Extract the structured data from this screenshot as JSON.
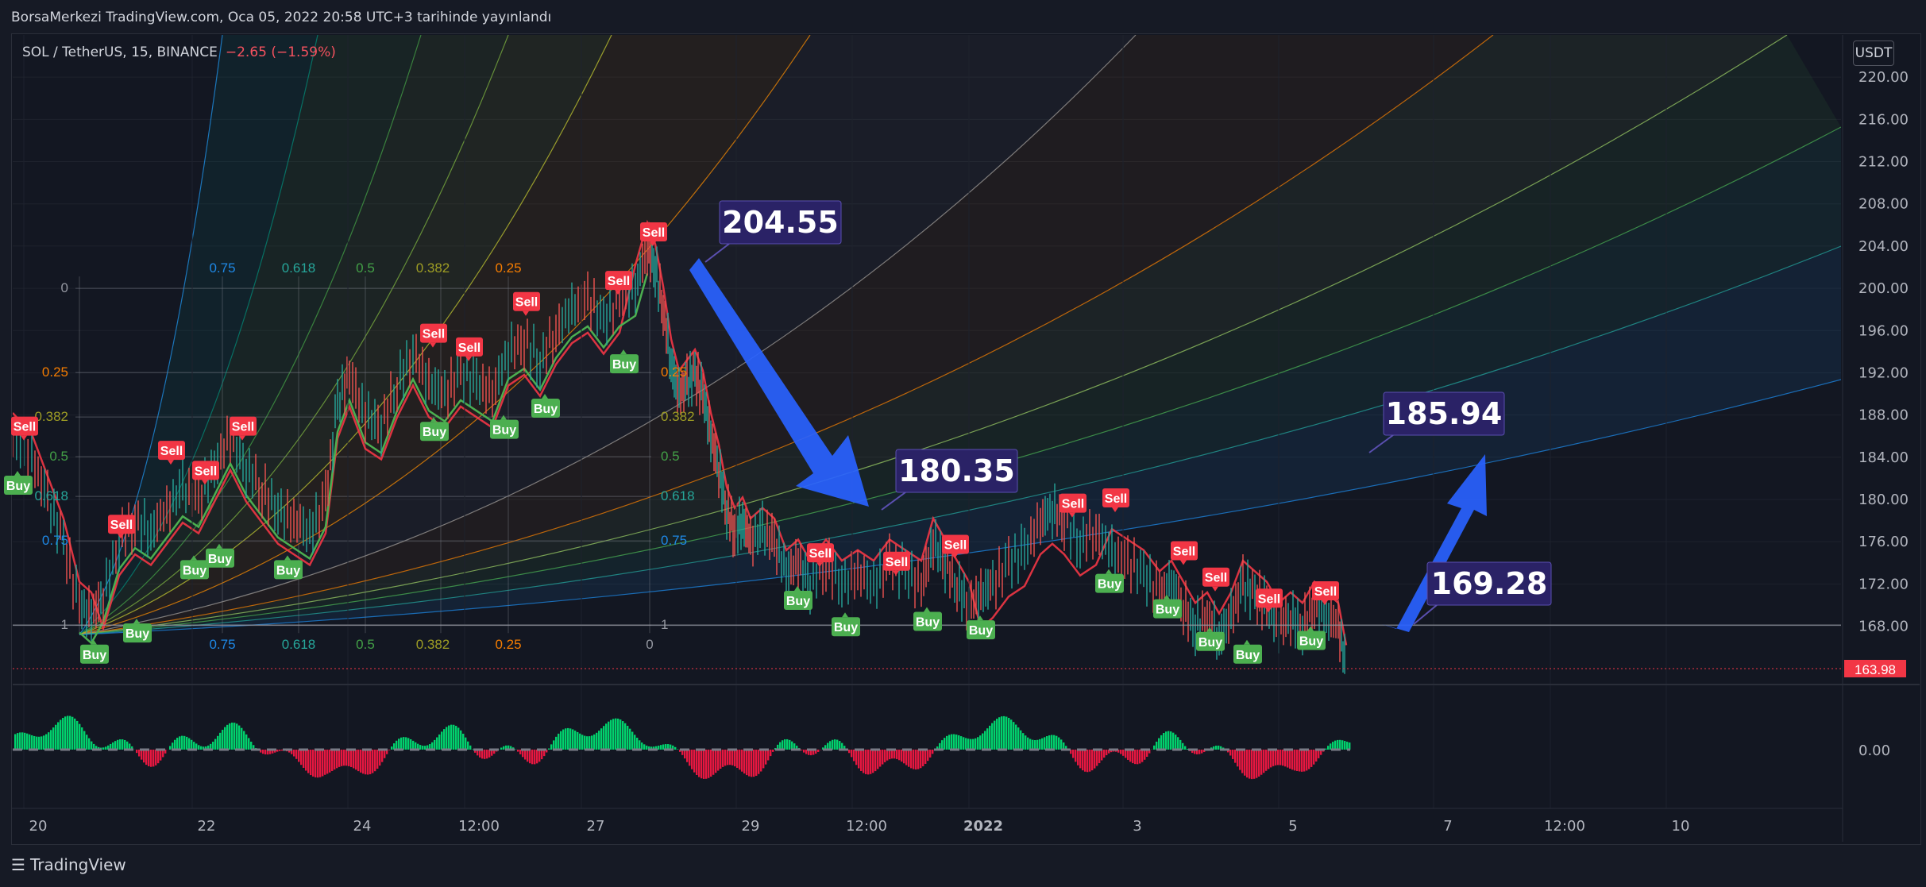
{
  "header": {
    "published": "BorsaMerkezi TradingView.com, Oca 05, 2022 20:58 UTC+3 tarihinde yayınlandı"
  },
  "symbol": {
    "name": "SOL / TetherUS, 15, BINANCE",
    "change": "−2.65 (−1.59%)"
  },
  "currency_label": "USDT",
  "footer": {
    "brand": "TradingView",
    "icon": "tradingview-logo-icon"
  },
  "colors": {
    "up": "#4caf50",
    "down": "#f23645",
    "arrow": "#2962ff",
    "callout_bg": "#2a2266",
    "price_tag": "#f23645"
  },
  "chart_data": {
    "type": "candlestick",
    "price_axis": {
      "ticks": [
        "220.00",
        "216.00",
        "212.00",
        "208.00",
        "204.00",
        "200.00",
        "196.00",
        "192.00",
        "188.00",
        "184.00",
        "180.00",
        "176.00",
        "172.00",
        "168.00"
      ],
      "range": [
        163,
        224
      ]
    },
    "last_price": "163.98",
    "oscillator_axis": {
      "ticks": [
        "0.00"
      ]
    },
    "time_axis": {
      "ticks": [
        "20",
        "22",
        "24",
        "12:00",
        "27",
        "29",
        "12:00",
        "2022",
        "3",
        "5",
        "7",
        "12:00",
        "10"
      ]
    },
    "callouts": [
      {
        "label": "204.55",
        "value": 204.55
      },
      {
        "label": "180.35",
        "value": 180.35
      },
      {
        "label": "185.94",
        "value": 185.94
      },
      {
        "label": "169.28",
        "value": 169.28
      }
    ],
    "fib_levels_left": [
      "0",
      "0.25",
      "0.382",
      "0.5",
      "0.618",
      "0.75",
      "1"
    ],
    "fib_levels_right": [
      "0.25",
      "0.382",
      "0.5",
      "0.618",
      "0.75",
      "1"
    ],
    "fib_top_labels": [
      "0.75",
      "0.618",
      "0.5",
      "0.382",
      "0.25"
    ],
    "fib_bottom_labels": [
      "0.75",
      "0.618",
      "0.5",
      "0.382",
      "0.25",
      "0"
    ],
    "signals": {
      "sell": [
        "Sell",
        "Sell",
        "Sell",
        "Sell",
        "Sell",
        "Sell",
        "Sell",
        "Sell",
        "Sell",
        "Sell",
        "Sell",
        "Sell",
        "Sell",
        "Sell",
        "Sell",
        "Sell",
        "Sell",
        "Sell",
        "Sell",
        "Sell"
      ],
      "buy": [
        "Buy",
        "Buy",
        "Buy",
        "Buy",
        "Buy",
        "Buy",
        "Buy",
        "Buy",
        "Buy",
        "Buy",
        "Buy",
        "Buy",
        "Buy",
        "Buy",
        "Buy",
        "Buy",
        "Buy",
        "Buy",
        "Buy"
      ]
    }
  }
}
